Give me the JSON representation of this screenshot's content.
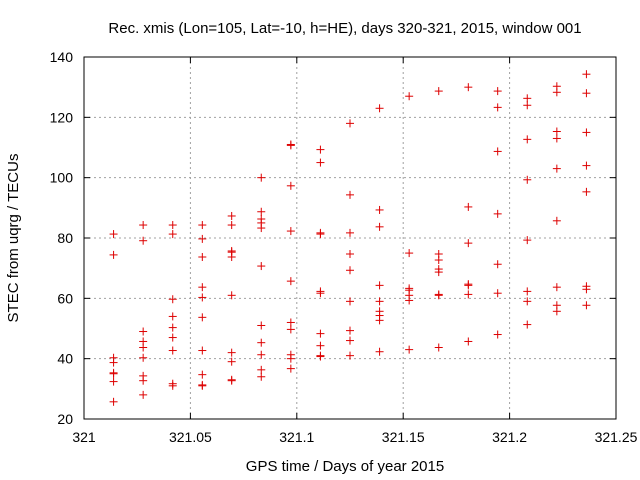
{
  "chart_data": {
    "type": "scatter",
    "title": "Rec. xmis (Lon=105, Lat=-10, h=HE), days 320-321, 2015, window 001",
    "xlabel": "GPS time / Days of year 2015",
    "ylabel": "STEC from uqrg / TECUs",
    "xlim": [
      321,
      321.25
    ],
    "ylim": [
      20,
      140
    ],
    "xticks": [
      321,
      321.05,
      321.1,
      321.15,
      321.2,
      321.25
    ],
    "xtick_labels": [
      "321",
      "321.05",
      "321.1",
      "321.15",
      "321.2",
      "321.25"
    ],
    "yticks": [
      20,
      40,
      60,
      80,
      100,
      120,
      140
    ],
    "ytick_labels": [
      "20",
      "40",
      "60",
      "80",
      "100",
      "120",
      "140"
    ],
    "grid": true,
    "marker": "+",
    "marker_color": "#dd0000",
    "series": [
      {
        "name": "STEC",
        "points": [
          [
            321.0139,
            81.3
          ],
          [
            321.0139,
            74.4
          ],
          [
            321.0139,
            40.3
          ],
          [
            321.0139,
            38.7
          ],
          [
            321.0139,
            35.3
          ],
          [
            321.0139,
            35.0
          ],
          [
            321.0139,
            32.4
          ],
          [
            321.0139,
            25.7
          ],
          [
            321.0278,
            84.3
          ],
          [
            321.0278,
            79.1
          ],
          [
            321.0278,
            49.0
          ],
          [
            321.0278,
            45.7
          ],
          [
            321.0278,
            43.7
          ],
          [
            321.0278,
            40.3
          ],
          [
            321.0278,
            34.3
          ],
          [
            321.0278,
            32.7
          ],
          [
            321.0278,
            28.0
          ],
          [
            321.0417,
            84.3
          ],
          [
            321.0417,
            81.3
          ],
          [
            321.0417,
            59.7
          ],
          [
            321.0417,
            54.0
          ],
          [
            321.0417,
            50.3
          ],
          [
            321.0417,
            47.0
          ],
          [
            321.0417,
            42.7
          ],
          [
            321.0417,
            31.7
          ],
          [
            321.0417,
            31.0
          ],
          [
            321.0556,
            84.3
          ],
          [
            321.0556,
            79.7
          ],
          [
            321.0556,
            73.7
          ],
          [
            321.0556,
            63.7
          ],
          [
            321.0556,
            60.3
          ],
          [
            321.0556,
            53.7
          ],
          [
            321.0556,
            42.7
          ],
          [
            321.0556,
            34.7
          ],
          [
            321.0556,
            31.3
          ],
          [
            321.0556,
            31.0
          ],
          [
            321.0694,
            87.3
          ],
          [
            321.0694,
            84.3
          ],
          [
            321.0694,
            75.7
          ],
          [
            321.0694,
            75.3
          ],
          [
            321.0694,
            73.7
          ],
          [
            321.0694,
            61.0
          ],
          [
            321.0694,
            42.0
          ],
          [
            321.0694,
            39.0
          ],
          [
            321.0694,
            33.0
          ],
          [
            321.0694,
            32.7
          ],
          [
            321.0833,
            100.0
          ],
          [
            321.0833,
            88.7
          ],
          [
            321.0833,
            86.3
          ],
          [
            321.0833,
            85.0
          ],
          [
            321.0833,
            83.3
          ],
          [
            321.0833,
            70.7
          ],
          [
            321.0833,
            51.0
          ],
          [
            321.0833,
            45.3
          ],
          [
            321.0833,
            41.3
          ],
          [
            321.0833,
            36.3
          ],
          [
            321.0833,
            34.0
          ],
          [
            321.0972,
            111.0
          ],
          [
            321.0972,
            110.7
          ],
          [
            321.0972,
            97.3
          ],
          [
            321.0972,
            82.3
          ],
          [
            321.0972,
            65.7
          ],
          [
            321.0972,
            52.0
          ],
          [
            321.0972,
            49.7
          ],
          [
            321.0972,
            41.3
          ],
          [
            321.0972,
            40.0
          ],
          [
            321.0972,
            36.7
          ],
          [
            321.1111,
            109.3
          ],
          [
            321.1111,
            105.0
          ],
          [
            321.1111,
            81.7
          ],
          [
            321.1111,
            81.3
          ],
          [
            321.1111,
            62.3
          ],
          [
            321.1111,
            61.7
          ],
          [
            321.1111,
            48.3
          ],
          [
            321.1111,
            44.3
          ],
          [
            321.1111,
            41.0
          ],
          [
            321.1111,
            40.7
          ],
          [
            321.125,
            118.0
          ],
          [
            321.125,
            94.3
          ],
          [
            321.125,
            81.7
          ],
          [
            321.125,
            74.7
          ],
          [
            321.125,
            69.3
          ],
          [
            321.125,
            59.0
          ],
          [
            321.125,
            49.3
          ],
          [
            321.125,
            46.0
          ],
          [
            321.125,
            41.0
          ],
          [
            321.1389,
            123.0
          ],
          [
            321.1389,
            89.3
          ],
          [
            321.1389,
            83.7
          ],
          [
            321.1389,
            64.3
          ],
          [
            321.1389,
            59.0
          ],
          [
            321.1389,
            55.7
          ],
          [
            321.1389,
            54.3
          ],
          [
            321.1389,
            52.7
          ],
          [
            321.1389,
            42.3
          ],
          [
            321.1528,
            127.0
          ],
          [
            321.1528,
            75.0
          ],
          [
            321.1528,
            63.3
          ],
          [
            321.1528,
            62.7
          ],
          [
            321.1528,
            61.0
          ],
          [
            321.1528,
            59.3
          ],
          [
            321.1528,
            43.0
          ],
          [
            321.1667,
            128.7
          ],
          [
            321.1667,
            74.7
          ],
          [
            321.1667,
            72.7
          ],
          [
            321.1667,
            69.7
          ],
          [
            321.1667,
            68.7
          ],
          [
            321.1667,
            61.3
          ],
          [
            321.1667,
            61.0
          ],
          [
            321.1667,
            43.7
          ],
          [
            321.1806,
            130.0
          ],
          [
            321.1806,
            90.3
          ],
          [
            321.1806,
            78.3
          ],
          [
            321.1806,
            64.7
          ],
          [
            321.1806,
            64.3
          ],
          [
            321.1806,
            61.3
          ],
          [
            321.1806,
            45.7
          ],
          [
            321.1944,
            128.7
          ],
          [
            321.1944,
            123.3
          ],
          [
            321.1944,
            108.7
          ],
          [
            321.1944,
            88.0
          ],
          [
            321.1944,
            71.3
          ],
          [
            321.1944,
            61.7
          ],
          [
            321.1944,
            48.0
          ],
          [
            321.2083,
            126.3
          ],
          [
            321.2083,
            124.0
          ],
          [
            321.2083,
            112.7
          ],
          [
            321.2083,
            99.3
          ],
          [
            321.2083,
            79.3
          ],
          [
            321.2083,
            62.3
          ],
          [
            321.2083,
            59.0
          ],
          [
            321.2083,
            51.3
          ],
          [
            321.2222,
            130.3
          ],
          [
            321.2222,
            128.3
          ],
          [
            321.2222,
            115.3
          ],
          [
            321.2222,
            113.0
          ],
          [
            321.2222,
            103.0
          ],
          [
            321.2222,
            85.7
          ],
          [
            321.2222,
            63.7
          ],
          [
            321.2222,
            57.7
          ],
          [
            321.2222,
            55.7
          ],
          [
            321.2361,
            134.3
          ],
          [
            321.2361,
            128.0
          ],
          [
            321.2361,
            115.0
          ],
          [
            321.2361,
            104.0
          ],
          [
            321.2361,
            95.3
          ],
          [
            321.2361,
            64.0
          ],
          [
            321.2361,
            63.0
          ],
          [
            321.2361,
            57.7
          ]
        ]
      }
    ]
  }
}
